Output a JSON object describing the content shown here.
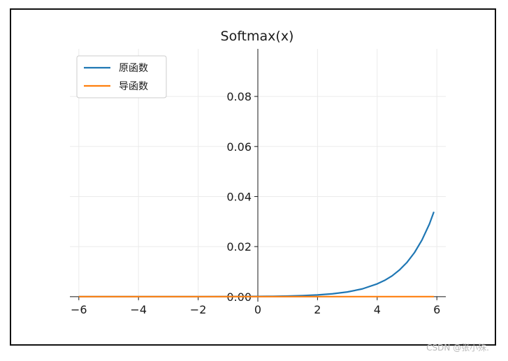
{
  "chart_data": {
    "type": "line",
    "title": "Softmax(x)",
    "xlabel": "",
    "ylabel": "",
    "xlim": [
      -6.3,
      6.3
    ],
    "ylim": [
      -0.002,
      0.099
    ],
    "xticks": [
      -6,
      -4,
      -2,
      0,
      2,
      4,
      6
    ],
    "xtick_labels": [
      "−6",
      "−4",
      "−2",
      "0",
      "2",
      "4",
      "6"
    ],
    "yticks": [
      0.0,
      0.02,
      0.04,
      0.06,
      0.08
    ],
    "ytick_labels": [
      "0.00",
      "0.02",
      "0.04",
      "0.06",
      "0.08"
    ],
    "grid": true,
    "legend_position": "upper-left",
    "series": [
      {
        "name": "原函数",
        "color": "#1f77b4",
        "x": [
          -6.0,
          -5.0,
          -4.0,
          -3.0,
          -2.0,
          -1.0,
          0.0,
          0.5,
          1.0,
          1.5,
          2.0,
          2.5,
          3.0,
          3.5,
          4.0,
          4.25,
          4.5,
          4.75,
          5.0,
          5.25,
          5.5,
          5.75,
          5.9
        ],
        "y": [
          2e-07,
          6e-07,
          1.7e-06,
          4.6e-06,
          1.25e-05,
          3.4e-05,
          9.3e-05,
          0.00015,
          0.00025,
          0.00042,
          0.00069,
          0.00114,
          0.00187,
          0.00309,
          0.0051,
          0.0065,
          0.0083,
          0.0107,
          0.0137,
          0.0176,
          0.0226,
          0.029,
          0.0339
        ]
      },
      {
        "name": "导函数",
        "color": "#ff7f0e",
        "x": [
          -6.0,
          -3.0,
          0.0,
          3.0,
          5.9
        ],
        "y": [
          0.0,
          0.0,
          0.0,
          0.0,
          0.0
        ]
      }
    ]
  },
  "watermark": "CSDN @张小殊."
}
